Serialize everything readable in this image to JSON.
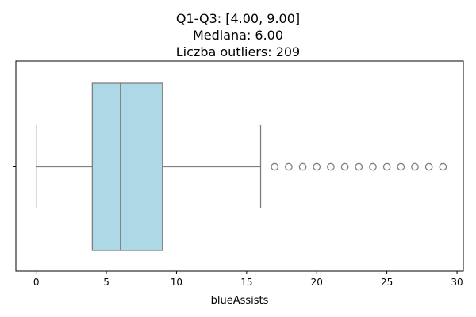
{
  "chart_data": {
    "type": "boxplot",
    "title_lines": [
      "Q1-Q3: [4.00, 9.00]",
      "Mediana: 6.00",
      "Liczba outliers: 209"
    ],
    "xlabel": "blueAssists",
    "ylabel": "",
    "xlim": [
      -1.45,
      30.45
    ],
    "xticks": [
      0,
      5,
      10,
      15,
      20,
      25,
      30
    ],
    "box": {
      "q1": 4,
      "median": 6,
      "q3": 9,
      "whisker_low": 0,
      "whisker_high": 16,
      "fill_color": "#add8e6",
      "line_color": "#7f7f7f"
    },
    "outliers": [
      17,
      18,
      19,
      20,
      21,
      22,
      23,
      24,
      25,
      26,
      27,
      28,
      29
    ],
    "outlier_count": 209,
    "grid": false,
    "legend": "none"
  }
}
